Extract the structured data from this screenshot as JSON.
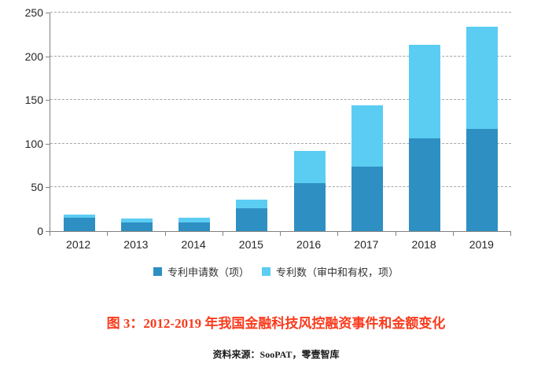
{
  "chart_data": {
    "type": "bar",
    "stacked": true,
    "categories": [
      "2012",
      "2013",
      "2014",
      "2015",
      "2016",
      "2017",
      "2018",
      "2019"
    ],
    "series": [
      {
        "name": "专利申请数（项）",
        "color": "#2E8FC2",
        "values": [
          15,
          10,
          10,
          26,
          55,
          74,
          106,
          117
        ]
      },
      {
        "name": "专利数（审中和有权，项）",
        "color": "#5BCDF2",
        "values": [
          4,
          4,
          5,
          10,
          37,
          70,
          107,
          117
        ]
      }
    ],
    "ylim": [
      0,
      250
    ],
    "yticks": [
      0,
      50,
      100,
      150,
      200,
      250
    ],
    "grid": "horizontal-dashed",
    "legend_position": "bottom",
    "axis_color": "#808080"
  },
  "caption": {
    "text": "图 3：2012-2019 年我国金融科技风控融资事件和金额变化",
    "color": "#F93B1D"
  },
  "source": {
    "text": "资料来源：SooPAT，零壹智库"
  }
}
